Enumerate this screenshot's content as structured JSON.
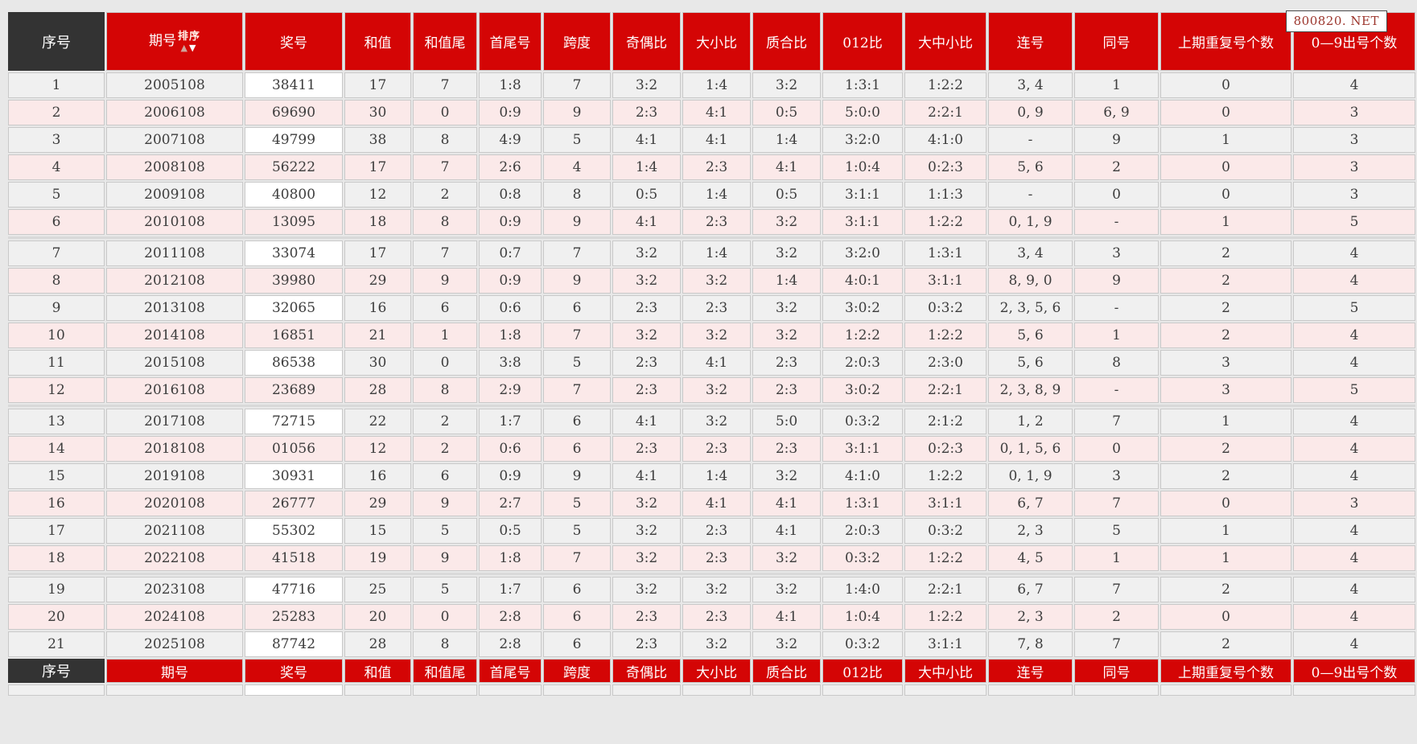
{
  "watermark": "800820. NET",
  "table": {
    "sort_label": "排序",
    "sort_up_icon": "▲",
    "sort_down_icon": "▼",
    "columns": [
      {
        "key": "xu-hao",
        "label": "序号",
        "width": 120
      },
      {
        "key": "qi-hao",
        "label": "期号",
        "width": 170
      },
      {
        "key": "jiang-hao",
        "label": "奖号",
        "width": 122
      },
      {
        "key": "he-zhi",
        "label": "和值",
        "width": 83
      },
      {
        "key": "he-zhi-wei",
        "label": "和值尾",
        "width": 80
      },
      {
        "key": "shou-wei-hao",
        "label": "首尾号",
        "width": 78
      },
      {
        "key": "kua-du",
        "label": "跨度",
        "width": 84
      },
      {
        "key": "ji-ou-bi",
        "label": "奇偶比",
        "width": 85
      },
      {
        "key": "da-xiao-bi",
        "label": "大小比",
        "width": 85
      },
      {
        "key": "zhi-he-bi",
        "label": "质合比",
        "width": 85
      },
      {
        "key": "012-bi",
        "label": "012比",
        "width": 100
      },
      {
        "key": "da-zhong-xiao-bi",
        "label": "大中小比",
        "width": 102
      },
      {
        "key": "lian-hao",
        "label": "连号",
        "width": 105
      },
      {
        "key": "tong-hao",
        "label": "同号",
        "width": 105
      },
      {
        "key": "shang-qi-chong-fu",
        "label": "上期重复号个数",
        "width": 163
      },
      {
        "key": "chu-hao-ge-shu",
        "label": "0—9出号个数",
        "width": 152
      }
    ],
    "group_breaks_after": [
      6,
      12,
      18
    ],
    "rows": [
      [
        "1",
        "2005108",
        "38411",
        "17",
        "7",
        "1:8",
        "7",
        "3:2",
        "1:4",
        "3:2",
        "1:3:1",
        "1:2:2",
        "3, 4",
        "1",
        "0",
        "4"
      ],
      [
        "2",
        "2006108",
        "69690",
        "30",
        "0",
        "0:9",
        "9",
        "2:3",
        "4:1",
        "0:5",
        "5:0:0",
        "2:2:1",
        "0, 9",
        "6, 9",
        "0",
        "3"
      ],
      [
        "3",
        "2007108",
        "49799",
        "38",
        "8",
        "4:9",
        "5",
        "4:1",
        "4:1",
        "1:4",
        "3:2:0",
        "4:1:0",
        "-",
        "9",
        "1",
        "3"
      ],
      [
        "4",
        "2008108",
        "56222",
        "17",
        "7",
        "2:6",
        "4",
        "1:4",
        "2:3",
        "4:1",
        "1:0:4",
        "0:2:3",
        "5, 6",
        "2",
        "0",
        "3"
      ],
      [
        "5",
        "2009108",
        "40800",
        "12",
        "2",
        "0:8",
        "8",
        "0:5",
        "1:4",
        "0:5",
        "3:1:1",
        "1:1:3",
        "-",
        "0",
        "0",
        "3"
      ],
      [
        "6",
        "2010108",
        "13095",
        "18",
        "8",
        "0:9",
        "9",
        "4:1",
        "2:3",
        "3:2",
        "3:1:1",
        "1:2:2",
        "0, 1, 9",
        "-",
        "1",
        "5"
      ],
      [
        "7",
        "2011108",
        "33074",
        "17",
        "7",
        "0:7",
        "7",
        "3:2",
        "1:4",
        "3:2",
        "3:2:0",
        "1:3:1",
        "3, 4",
        "3",
        "2",
        "4"
      ],
      [
        "8",
        "2012108",
        "39980",
        "29",
        "9",
        "0:9",
        "9",
        "3:2",
        "3:2",
        "1:4",
        "4:0:1",
        "3:1:1",
        "8, 9, 0",
        "9",
        "2",
        "4"
      ],
      [
        "9",
        "2013108",
        "32065",
        "16",
        "6",
        "0:6",
        "6",
        "2:3",
        "2:3",
        "3:2",
        "3:0:2",
        "0:3:2",
        "2, 3, 5, 6",
        "-",
        "2",
        "5"
      ],
      [
        "10",
        "2014108",
        "16851",
        "21",
        "1",
        "1:8",
        "7",
        "3:2",
        "3:2",
        "3:2",
        "1:2:2",
        "1:2:2",
        "5, 6",
        "1",
        "2",
        "4"
      ],
      [
        "11",
        "2015108",
        "86538",
        "30",
        "0",
        "3:8",
        "5",
        "2:3",
        "4:1",
        "2:3",
        "2:0:3",
        "2:3:0",
        "5, 6",
        "8",
        "3",
        "4"
      ],
      [
        "12",
        "2016108",
        "23689",
        "28",
        "8",
        "2:9",
        "7",
        "2:3",
        "3:2",
        "2:3",
        "3:0:2",
        "2:2:1",
        "2, 3, 8, 9",
        "-",
        "3",
        "5"
      ],
      [
        "13",
        "2017108",
        "72715",
        "22",
        "2",
        "1:7",
        "6",
        "4:1",
        "3:2",
        "5:0",
        "0:3:2",
        "2:1:2",
        "1, 2",
        "7",
        "1",
        "4"
      ],
      [
        "14",
        "2018108",
        "01056",
        "12",
        "2",
        "0:6",
        "6",
        "2:3",
        "2:3",
        "2:3",
        "3:1:1",
        "0:2:3",
        "0, 1, 5, 6",
        "0",
        "2",
        "4"
      ],
      [
        "15",
        "2019108",
        "30931",
        "16",
        "6",
        "0:9",
        "9",
        "4:1",
        "1:4",
        "3:2",
        "4:1:0",
        "1:2:2",
        "0, 1, 9",
        "3",
        "2",
        "4"
      ],
      [
        "16",
        "2020108",
        "26777",
        "29",
        "9",
        "2:7",
        "5",
        "3:2",
        "4:1",
        "4:1",
        "1:3:1",
        "3:1:1",
        "6, 7",
        "7",
        "0",
        "3"
      ],
      [
        "17",
        "2021108",
        "55302",
        "15",
        "5",
        "0:5",
        "5",
        "3:2",
        "2:3",
        "4:1",
        "2:0:3",
        "0:3:2",
        "2, 3",
        "5",
        "1",
        "4"
      ],
      [
        "18",
        "2022108",
        "41518",
        "19",
        "9",
        "1:8",
        "7",
        "3:2",
        "2:3",
        "3:2",
        "0:3:2",
        "1:2:2",
        "4, 5",
        "1",
        "1",
        "4"
      ],
      [
        "19",
        "2023108",
        "47716",
        "25",
        "5",
        "1:7",
        "6",
        "3:2",
        "3:2",
        "3:2",
        "1:4:0",
        "2:2:1",
        "6, 7",
        "7",
        "2",
        "4"
      ],
      [
        "20",
        "2024108",
        "25283",
        "20",
        "0",
        "2:8",
        "6",
        "2:3",
        "2:3",
        "4:1",
        "1:0:4",
        "1:2:2",
        "2, 3",
        "2",
        "0",
        "4"
      ],
      [
        "21",
        "2025108",
        "87742",
        "28",
        "8",
        "2:8",
        "6",
        "2:3",
        "3:2",
        "3:2",
        "0:3:2",
        "3:1:1",
        "7, 8",
        "7",
        "2",
        "4"
      ]
    ]
  }
}
